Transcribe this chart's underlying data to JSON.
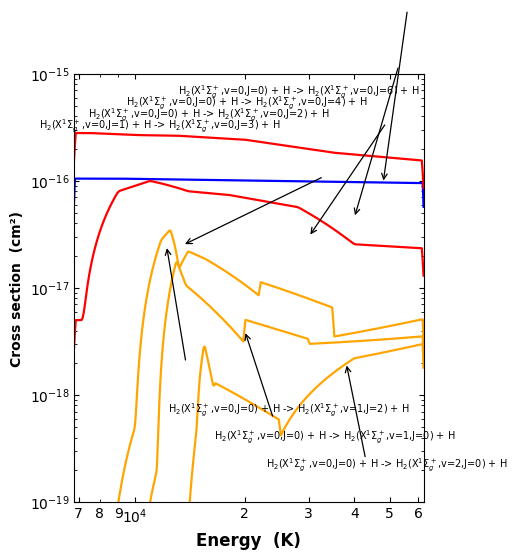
{
  "xlabel": "Energy  (K)",
  "ylabel": "Cross section  (cm²)",
  "xlim": [
    6800,
    62000
  ],
  "ylim": [
    1e-19,
    1e-15
  ],
  "background_color": "#ffffff",
  "top_ann_texts": [
    "H$_2$(X$^1\\Sigma_g^+$,v=0,J=0) + H -> H$_2$(X$^1\\Sigma_g^+$,v=0,J=6) + H",
    "H$_2$(X$^1\\Sigma_g^+$,v=0,J=0) + H -> H$_2$(X$^1\\Sigma_g^+$,v=0,J=4) + H",
    "H$_2$(X$^1\\Sigma_g^+$,v=0,J=0) + H -> H$_2$(X$^1\\Sigma_g^+$,v=0,J=2) + H",
    "H$_2$(X$^1\\Sigma_g^+$,v=0,J=1) + H -> H$_2$(X$^1\\Sigma_g^+$,v=0,J=3) + H"
  ],
  "bot_ann_texts": [
    "H$_2$(X$^1\\Sigma_g^+$,v=0,J=0) + H -> H$_2$(X$^1\\Sigma_g^+$,v=1,J=2) + H",
    "H$_2$(X$^1\\Sigma_g^+$,v=0,J=0) + H -> H$_2$(X$^1\\Sigma_g^+$,v=1,J=0) + H",
    "H$_2$(X$^1\\Sigma_g^+$,v=0,J=0) + H -> H$_2$(X$^1\\Sigma_g^+$,v=2,J=0) + H"
  ]
}
